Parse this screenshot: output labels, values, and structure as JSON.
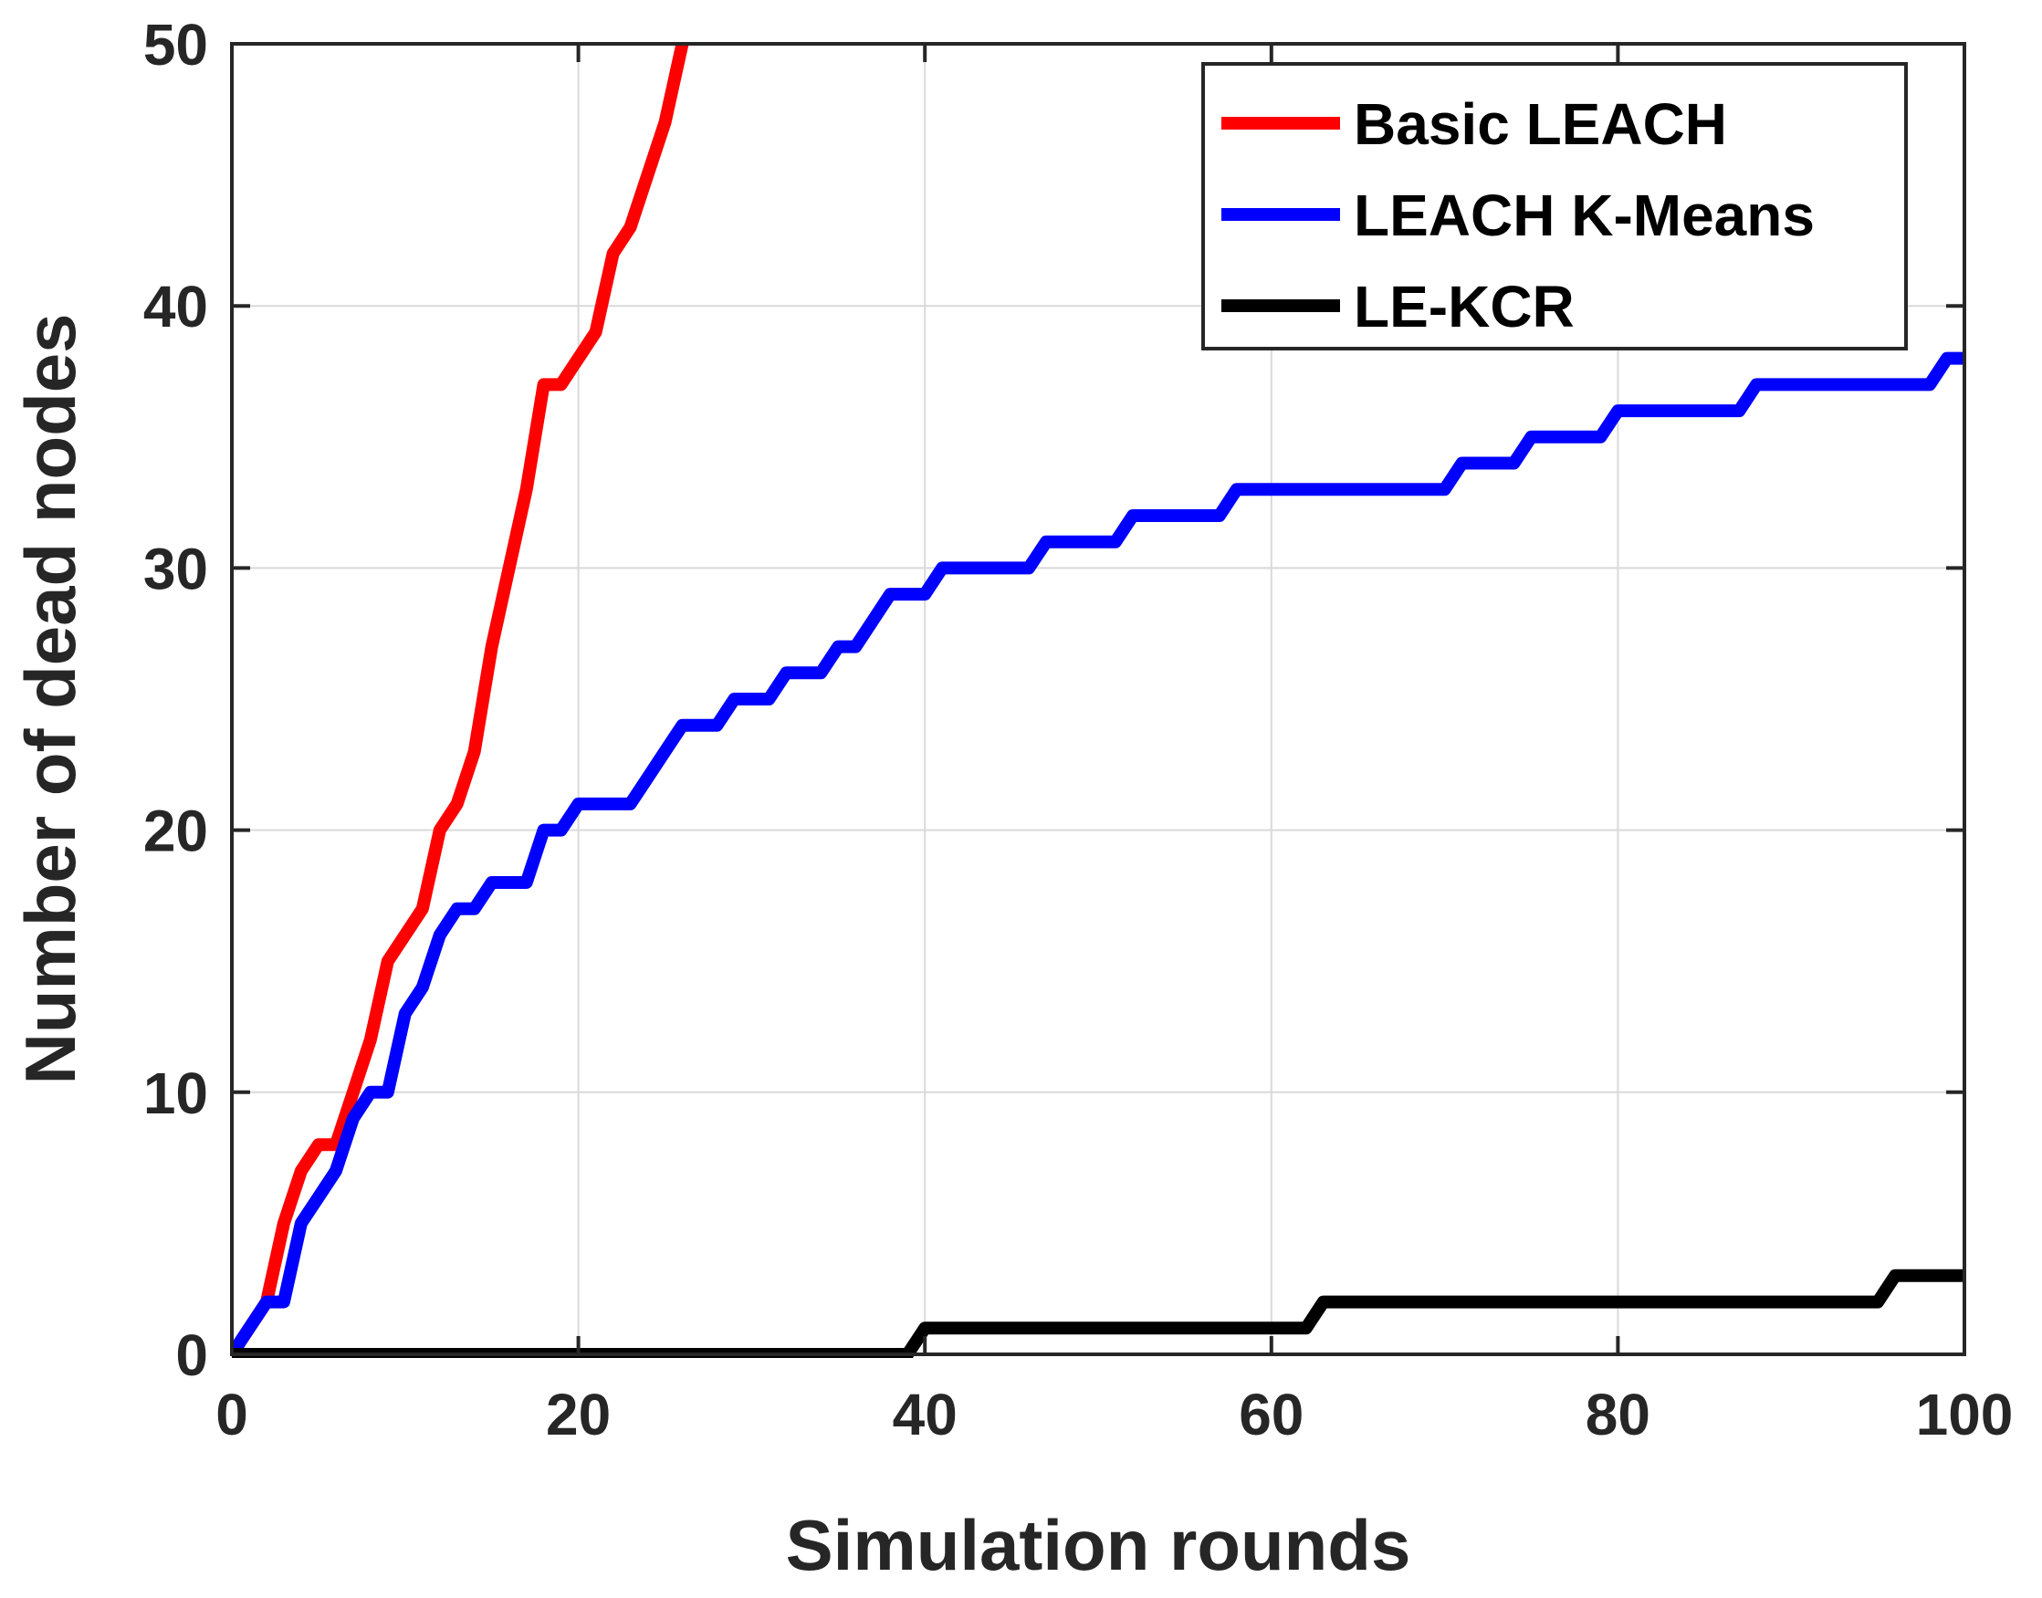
{
  "chart_data": {
    "type": "line",
    "title": "",
    "xlabel": "Simulation rounds",
    "ylabel": "Number of dead nodes",
    "xlim": [
      0,
      100
    ],
    "ylim": [
      0,
      50
    ],
    "xticks": [
      0,
      20,
      40,
      60,
      80,
      100
    ],
    "yticks": [
      0,
      10,
      20,
      30,
      40,
      50
    ],
    "xtick_labels": [
      "0",
      "20",
      "40",
      "60",
      "80",
      "100"
    ],
    "ytick_labels": [
      "0",
      "10",
      "20",
      "30",
      "40",
      "50"
    ],
    "grid": true,
    "legend_position": "top-right",
    "series": [
      {
        "name": "Basic LEACH",
        "color": "#ff0000",
        "points": [
          [
            0,
            0
          ],
          [
            2,
            2
          ],
          [
            3,
            5
          ],
          [
            4,
            7
          ],
          [
            5,
            8
          ],
          [
            6,
            8
          ],
          [
            7,
            10
          ],
          [
            8,
            12
          ],
          [
            9,
            15
          ],
          [
            10,
            16
          ],
          [
            11,
            17
          ],
          [
            12,
            20
          ],
          [
            13,
            21
          ],
          [
            14,
            23
          ],
          [
            15,
            27
          ],
          [
            16,
            30
          ],
          [
            17,
            33
          ],
          [
            18,
            37
          ],
          [
            19,
            37
          ],
          [
            20,
            38
          ],
          [
            21,
            39
          ],
          [
            22,
            42
          ],
          [
            23,
            43
          ],
          [
            24,
            45
          ],
          [
            25,
            47
          ],
          [
            26,
            50
          ]
        ]
      },
      {
        "name": "LEACH K-Means",
        "color": "#0000ff",
        "points": [
          [
            0,
            0
          ],
          [
            1,
            1
          ],
          [
            2,
            2
          ],
          [
            3,
            2
          ],
          [
            4,
            5
          ],
          [
            5,
            6
          ],
          [
            6,
            7
          ],
          [
            7,
            9
          ],
          [
            8,
            10
          ],
          [
            9,
            10
          ],
          [
            10,
            13
          ],
          [
            11,
            14
          ],
          [
            12,
            16
          ],
          [
            13,
            17
          ],
          [
            14,
            17
          ],
          [
            15,
            18
          ],
          [
            16,
            18
          ],
          [
            17,
            18
          ],
          [
            18,
            20
          ],
          [
            19,
            20
          ],
          [
            20,
            21
          ],
          [
            21,
            21
          ],
          [
            22,
            21
          ],
          [
            23,
            21
          ],
          [
            24,
            22
          ],
          [
            25,
            23
          ],
          [
            26,
            24
          ],
          [
            27,
            24
          ],
          [
            28,
            24
          ],
          [
            29,
            25
          ],
          [
            30,
            25
          ],
          [
            31,
            25
          ],
          [
            32,
            26
          ],
          [
            33,
            26
          ],
          [
            34,
            26
          ],
          [
            35,
            27
          ],
          [
            36,
            27
          ],
          [
            37,
            28
          ],
          [
            38,
            29
          ],
          [
            39,
            29
          ],
          [
            40,
            29
          ],
          [
            41,
            30
          ],
          [
            42,
            30
          ],
          [
            43,
            30
          ],
          [
            44,
            30
          ],
          [
            45,
            30
          ],
          [
            46,
            30
          ],
          [
            47,
            31
          ],
          [
            48,
            31
          ],
          [
            49,
            31
          ],
          [
            50,
            31
          ],
          [
            51,
            31
          ],
          [
            52,
            32
          ],
          [
            53,
            32
          ],
          [
            54,
            32
          ],
          [
            55,
            32
          ],
          [
            56,
            32
          ],
          [
            57,
            32
          ],
          [
            58,
            33
          ],
          [
            59,
            33
          ],
          [
            60,
            33
          ],
          [
            61,
            33
          ],
          [
            62,
            33
          ],
          [
            63,
            33
          ],
          [
            64,
            33
          ],
          [
            65,
            33
          ],
          [
            66,
            33
          ],
          [
            67,
            33
          ],
          [
            68,
            33
          ],
          [
            69,
            33
          ],
          [
            70,
            33
          ],
          [
            71,
            34
          ],
          [
            72,
            34
          ],
          [
            73,
            34
          ],
          [
            74,
            34
          ],
          [
            75,
            35
          ],
          [
            76,
            35
          ],
          [
            77,
            35
          ],
          [
            78,
            35
          ],
          [
            79,
            35
          ],
          [
            80,
            36
          ],
          [
            81,
            36
          ],
          [
            82,
            36
          ],
          [
            83,
            36
          ],
          [
            84,
            36
          ],
          [
            85,
            36
          ],
          [
            86,
            36
          ],
          [
            87,
            36
          ],
          [
            88,
            37
          ],
          [
            89,
            37
          ],
          [
            90,
            37
          ],
          [
            91,
            37
          ],
          [
            92,
            37
          ],
          [
            93,
            37
          ],
          [
            94,
            37
          ],
          [
            95,
            37
          ],
          [
            96,
            37
          ],
          [
            97,
            37
          ],
          [
            98,
            37
          ],
          [
            99,
            38
          ],
          [
            100,
            38
          ]
        ]
      },
      {
        "name": "LE-KCR",
        "color": "#000000",
        "points": [
          [
            0,
            0
          ],
          [
            39,
            0
          ],
          [
            40,
            1
          ],
          [
            41,
            1
          ],
          [
            62,
            1
          ],
          [
            63,
            2
          ],
          [
            64,
            2
          ],
          [
            95,
            2
          ],
          [
            96,
            3
          ],
          [
            100,
            3
          ]
        ]
      }
    ]
  }
}
